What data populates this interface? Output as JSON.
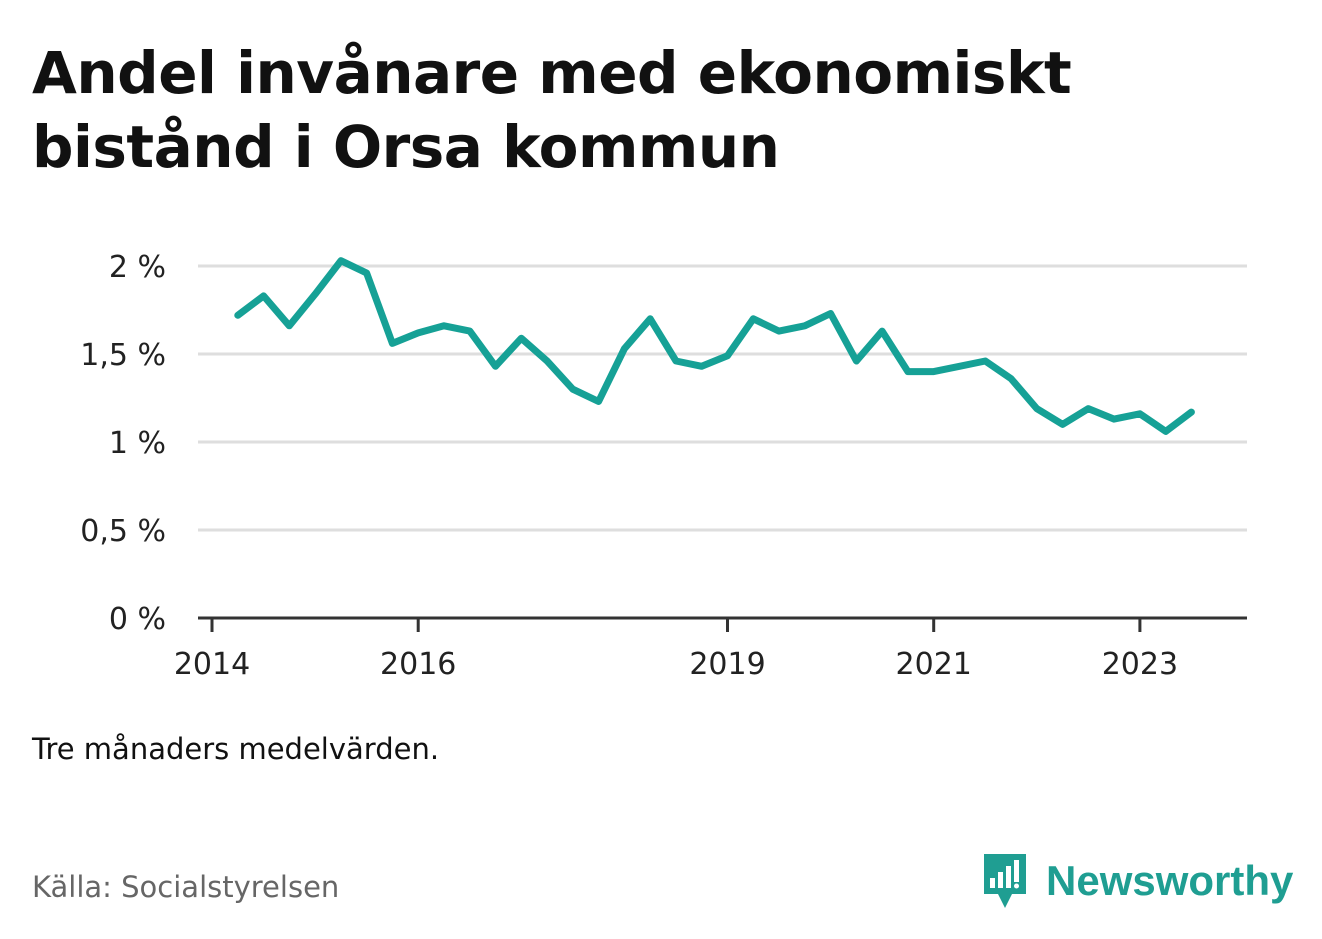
{
  "title": "Andel invånare med ekonomiskt bistånd i Orsa kommun",
  "note": "Tre månaders medelvärden.",
  "source": "Källa: Socialstyrelsen",
  "brand": {
    "name": "Newsworthy",
    "icon": "newsworthy-logo-icon",
    "color": "#1f9e92"
  },
  "chart_data": {
    "type": "line",
    "title": "Andel invånare med ekonomiskt bistånd i Orsa kommun",
    "xlabel": "",
    "ylabel": "",
    "ylim": [
      0,
      2
    ],
    "yticks": [
      0,
      0.5,
      1,
      1.5,
      2
    ],
    "ytick_labels": [
      "0 %",
      "0,5 %",
      "1 %",
      "1,5 %",
      "2 %"
    ],
    "xticks": [
      2014,
      2016,
      2019,
      2021,
      2023
    ],
    "xtick_labels": [
      "2014",
      "2016",
      "2019",
      "2021",
      "2023"
    ],
    "grid": true,
    "line_color": "#16a196",
    "series": [
      {
        "x": [
          "2014-04",
          "2014-07",
          "2014-10",
          "2015-01",
          "2015-04",
          "2015-07",
          "2015-10",
          "2016-01",
          "2016-04",
          "2016-07",
          "2016-10",
          "2017-01",
          "2017-04",
          "2017-07",
          "2017-10",
          "2018-01",
          "2018-04",
          "2018-07",
          "2018-10",
          "2019-01",
          "2019-04",
          "2019-07",
          "2019-10",
          "2020-01",
          "2020-04",
          "2020-07",
          "2020-10",
          "2021-01",
          "2021-04",
          "2021-07",
          "2021-10",
          "2022-01",
          "2022-04",
          "2022-07",
          "2022-10",
          "2023-01",
          "2023-04",
          "2023-07"
        ],
        "values": [
          1.72,
          1.83,
          1.66,
          1.84,
          2.03,
          1.96,
          1.56,
          1.62,
          1.66,
          1.63,
          1.43,
          1.59,
          1.46,
          1.3,
          1.23,
          1.53,
          1.7,
          1.46,
          1.43,
          1.49,
          1.7,
          1.63,
          1.66,
          1.73,
          1.46,
          1.63,
          1.4,
          1.4,
          1.43,
          1.46,
          1.36,
          1.19,
          1.1,
          1.19,
          1.13,
          1.16,
          1.06,
          1.17
        ]
      }
    ]
  }
}
